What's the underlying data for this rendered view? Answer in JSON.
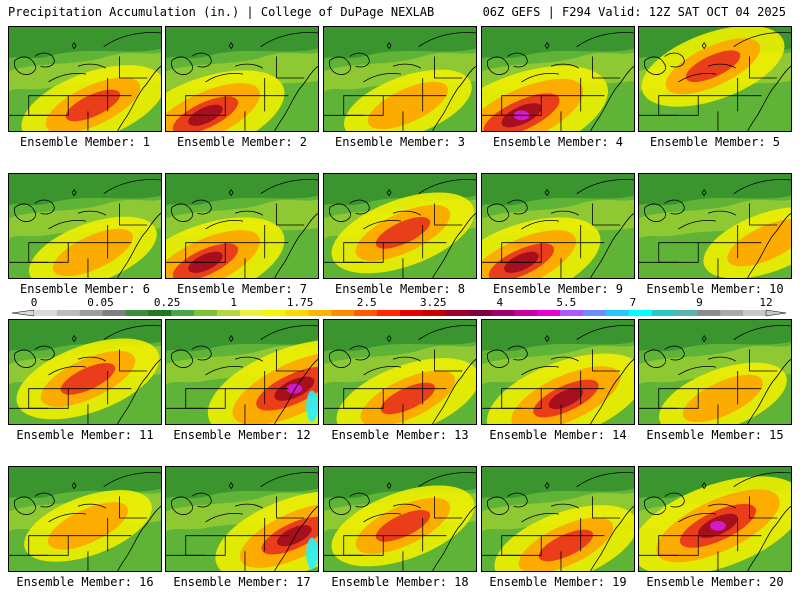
{
  "header": {
    "left_title": "Precipitation Accumulation (in.) | College of DuPage NEXLAB",
    "right_title": "06Z GEFS | F294 Valid: 12Z SAT OCT 04 2025"
  },
  "label_prefix": "Ensemble Member:",
  "members": [
    {
      "number": "1",
      "intensity": 2,
      "hotspot": "south"
    },
    {
      "number": "2",
      "intensity": 3,
      "hotspot": "southwest"
    },
    {
      "number": "3",
      "intensity": 1,
      "hotspot": "south"
    },
    {
      "number": "4",
      "intensity": 4,
      "hotspot": "southwest"
    },
    {
      "number": "5",
      "intensity": 2,
      "hotspot": "north"
    },
    {
      "number": "6",
      "intensity": 1,
      "hotspot": "south"
    },
    {
      "number": "7",
      "intensity": 3,
      "hotspot": "southwest"
    },
    {
      "number": "8",
      "intensity": 2,
      "hotspot": "center"
    },
    {
      "number": "9",
      "intensity": 3,
      "hotspot": "southwest"
    },
    {
      "number": "10",
      "intensity": 1,
      "hotspot": "east"
    },
    {
      "number": "11",
      "intensity": 2,
      "hotspot": "center"
    },
    {
      "number": "12",
      "intensity": 4,
      "hotspot": "east"
    },
    {
      "number": "13",
      "intensity": 2,
      "hotspot": "south"
    },
    {
      "number": "14",
      "intensity": 3,
      "hotspot": "south"
    },
    {
      "number": "15",
      "intensity": 1,
      "hotspot": "south"
    },
    {
      "number": "16",
      "intensity": 1,
      "hotspot": "center"
    },
    {
      "number": "17",
      "intensity": 3,
      "hotspot": "east"
    },
    {
      "number": "18",
      "intensity": 2,
      "hotspot": "center"
    },
    {
      "number": "19",
      "intensity": 2,
      "hotspot": "south"
    },
    {
      "number": "20",
      "intensity": 4,
      "hotspot": "center"
    }
  ],
  "colorbar": {
    "tick_labels": [
      "0",
      "0.05",
      "0.25",
      "1",
      "1.75",
      "2.5",
      "3.25",
      "4",
      "5.5",
      "7",
      "9",
      "12"
    ],
    "colors": [
      "#d9d9d9",
      "#bdbdbd",
      "#9e9e9e",
      "#7f7f7f",
      "#3c8c3c",
      "#1e7a1e",
      "#48a848",
      "#7ec23a",
      "#b4d83c",
      "#ecf23c",
      "#f5f500",
      "#ffd700",
      "#ffb400",
      "#ff8c00",
      "#ff5a00",
      "#ff2800",
      "#e60000",
      "#c80000",
      "#a00028",
      "#800040",
      "#a0006e",
      "#c800a0",
      "#e600d2",
      "#aa5aff",
      "#6e8cff",
      "#28c8ff",
      "#00ffff",
      "#28c8c8",
      "#5ab4b4",
      "#8c8c8c",
      "#aaaaaa",
      "#c8c8c8"
    ]
  },
  "palette": {
    "base_green": "#5fb437",
    "dark_green": "#2e8b2e",
    "light_green": "#9acd32",
    "yellow": "#f0f000",
    "orange": "#ffa500",
    "red": "#e8321e",
    "dark_red": "#a00a1e",
    "magenta": "#d21ed2",
    "cyan": "#28f0ff"
  }
}
